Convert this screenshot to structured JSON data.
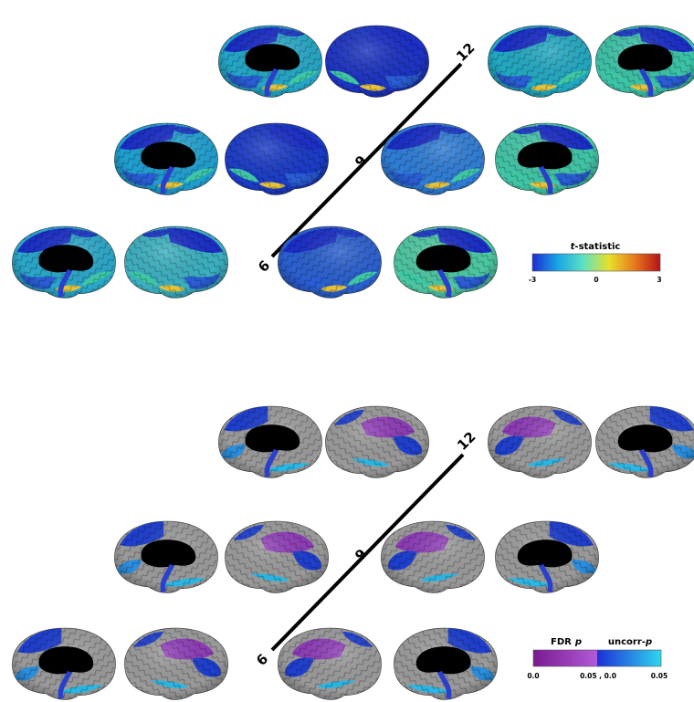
{
  "panels": [
    {
      "id": "tstat",
      "ages": [
        "6",
        "9",
        "12"
      ],
      "colorbar": {
        "title_italic": "t",
        "title_rest": "-statistic",
        "ticks": [
          "-3",
          "0",
          "3"
        ],
        "stops": [
          "#1e2bd1",
          "#19a6e6",
          "#5ee2c2",
          "#e8e02a",
          "#e8781e",
          "#b4121a"
        ]
      },
      "rows": [
        {
          "age": "12",
          "medial_left": {
            "base": "#24a6c6"
          },
          "lateral_left": {
            "base": "#1d34c4"
          },
          "lateral_right": {
            "base": "#22a9c2"
          },
          "medial_right": {
            "base": "#3bc3a8"
          }
        },
        {
          "age": "9",
          "medial_left": {
            "base": "#1f9fd0"
          },
          "lateral_left": {
            "base": "#1b3cc8"
          },
          "lateral_right": {
            "base": "#2f7dd6"
          },
          "medial_right": {
            "base": "#41c5a6"
          }
        },
        {
          "age": "6",
          "medial_left": {
            "base": "#2aa7c9"
          },
          "lateral_left": {
            "base": "#3bb0c0"
          },
          "lateral_right": {
            "base": "#2b60d0"
          },
          "medial_right": {
            "base": "#4cc7a2"
          }
        }
      ]
    },
    {
      "id": "pvalue",
      "ages": [
        "6",
        "9",
        "12"
      ],
      "colorbar": {
        "left_label": "FDR",
        "left_label_italic": "p",
        "right_label": "uncorr-",
        "right_label_italic": "p",
        "ticks": [
          "0.0",
          "0.05 , 0.0",
          "0.05"
        ],
        "fdr_stops": [
          "#7b1a8f",
          "#b15ad8"
        ],
        "uncorr_stops": [
          "#1d2fd8",
          "#2fd7ee"
        ]
      }
    }
  ],
  "colors": {
    "gray_cortex": "#9a9a9a",
    "fdr": "#8e3bb8",
    "uncorr_dark": "#1e3fd0",
    "uncorr_light": "#2ab8e6"
  }
}
